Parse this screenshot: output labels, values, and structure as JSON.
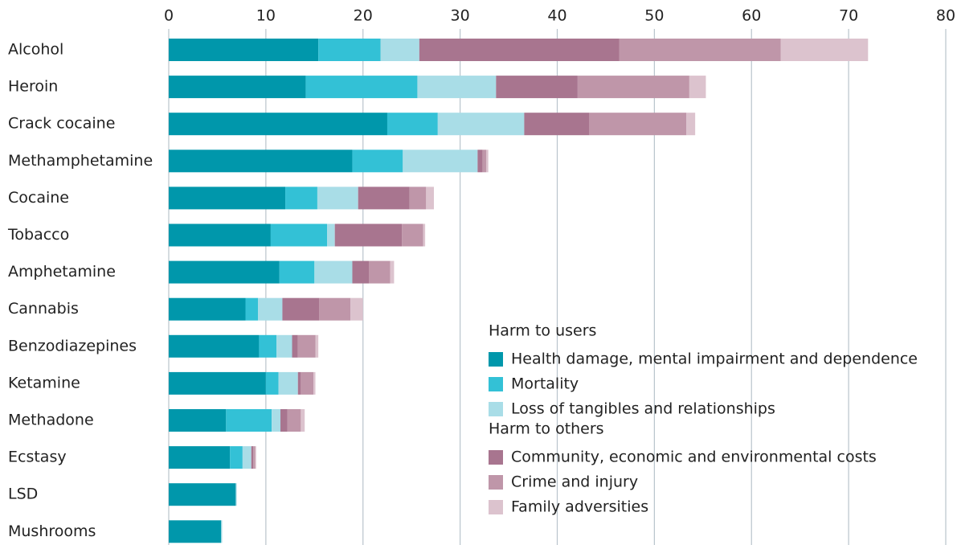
{
  "chart_data": {
    "type": "stacked_bar_horizontal",
    "categories": [
      "Alcohol",
      "Heroin",
      "Crack cocaine",
      "Methamphetamine",
      "Cocaine",
      "Tobacco",
      "Amphetamine",
      "Cannabis",
      "Benzodiazepines",
      "Ketamine",
      "Methadone",
      "Ecstasy",
      "LSD",
      "Mushrooms"
    ],
    "series": [
      {
        "name": "Health damage, mental impairment and dependence",
        "group": "Harm to users",
        "color": "#0097ab",
        "values": [
          15.4,
          14.1,
          22.5,
          18.9,
          12.0,
          10.5,
          11.4,
          7.9,
          9.3,
          10.0,
          5.9,
          6.3,
          6.9,
          5.4
        ]
      },
      {
        "name": "Mortality",
        "group": "Harm to users",
        "color": "#33c1d6",
        "values": [
          6.4,
          11.5,
          5.2,
          5.2,
          3.3,
          5.8,
          3.6,
          1.3,
          1.8,
          1.3,
          4.7,
          1.3,
          0,
          0
        ]
      },
      {
        "name": "Loss of tangibles and relationships",
        "group": "Harm to users",
        "color": "#a9dde7",
        "values": [
          4.0,
          8.1,
          8.9,
          7.7,
          4.2,
          0.8,
          3.9,
          2.5,
          1.6,
          2.0,
          0.9,
          0.9,
          0.1,
          0.1
        ]
      },
      {
        "name": "Community, economic and environmental costs",
        "group": "Harm to others",
        "color": "#a8758f",
        "values": [
          20.6,
          8.4,
          6.7,
          0.5,
          5.3,
          6.9,
          1.7,
          3.8,
          0.6,
          0.3,
          0.7,
          0.2,
          0,
          0
        ]
      },
      {
        "name": "Crime and injury",
        "group": "Harm to others",
        "color": "#bf96a9",
        "values": [
          16.6,
          11.5,
          10.0,
          0.4,
          1.7,
          2.2,
          2.2,
          3.2,
          1.8,
          1.3,
          1.4,
          0.2,
          0,
          0
        ]
      },
      {
        "name": "Family adversities",
        "group": "Harm to others",
        "color": "#dcc3ce",
        "values": [
          9.0,
          1.7,
          0.9,
          0.2,
          0.8,
          0.2,
          0.4,
          1.3,
          0.3,
          0.2,
          0.4,
          0.1,
          0,
          0
        ]
      }
    ],
    "xlim": [
      0,
      80
    ],
    "xticks": [
      0,
      10,
      20,
      30,
      40,
      50,
      60,
      70,
      80
    ],
    "grid": true
  }
}
